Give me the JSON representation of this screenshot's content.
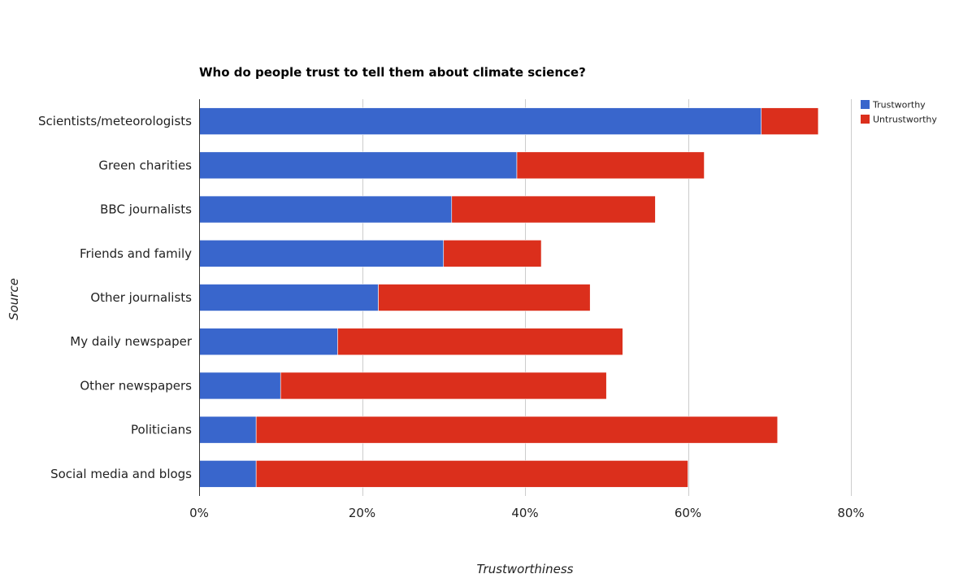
{
  "chart_data": {
    "type": "bar",
    "orientation": "horizontal",
    "stacked": true,
    "title": "Who do people trust to tell them about climate science?",
    "xlabel": "Trustworthiness",
    "ylabel": "Source",
    "categories": [
      "Scientists/meteorologists",
      "Green charities",
      "BBC journalists",
      "Friends and family",
      "Other journalists",
      "My daily newspaper",
      "Other newspapers",
      "Politicians",
      "Social media and blogs"
    ],
    "series": [
      {
        "name": "Trustworthy",
        "color": "#3966cc",
        "values": [
          69,
          39,
          31,
          30,
          22,
          17,
          10,
          7,
          7
        ]
      },
      {
        "name": "Untrustworthy",
        "color": "#db2f1c",
        "values": [
          7,
          23,
          25,
          12,
          26,
          35,
          40,
          64,
          53
        ]
      }
    ],
    "xlim": [
      0,
      80
    ],
    "x_ticks": [
      0,
      20,
      40,
      60,
      80
    ],
    "x_tick_labels": [
      "0%",
      "20%",
      "40%",
      "60%",
      "80%"
    ],
    "grid": true,
    "legend_position": "top-right"
  }
}
